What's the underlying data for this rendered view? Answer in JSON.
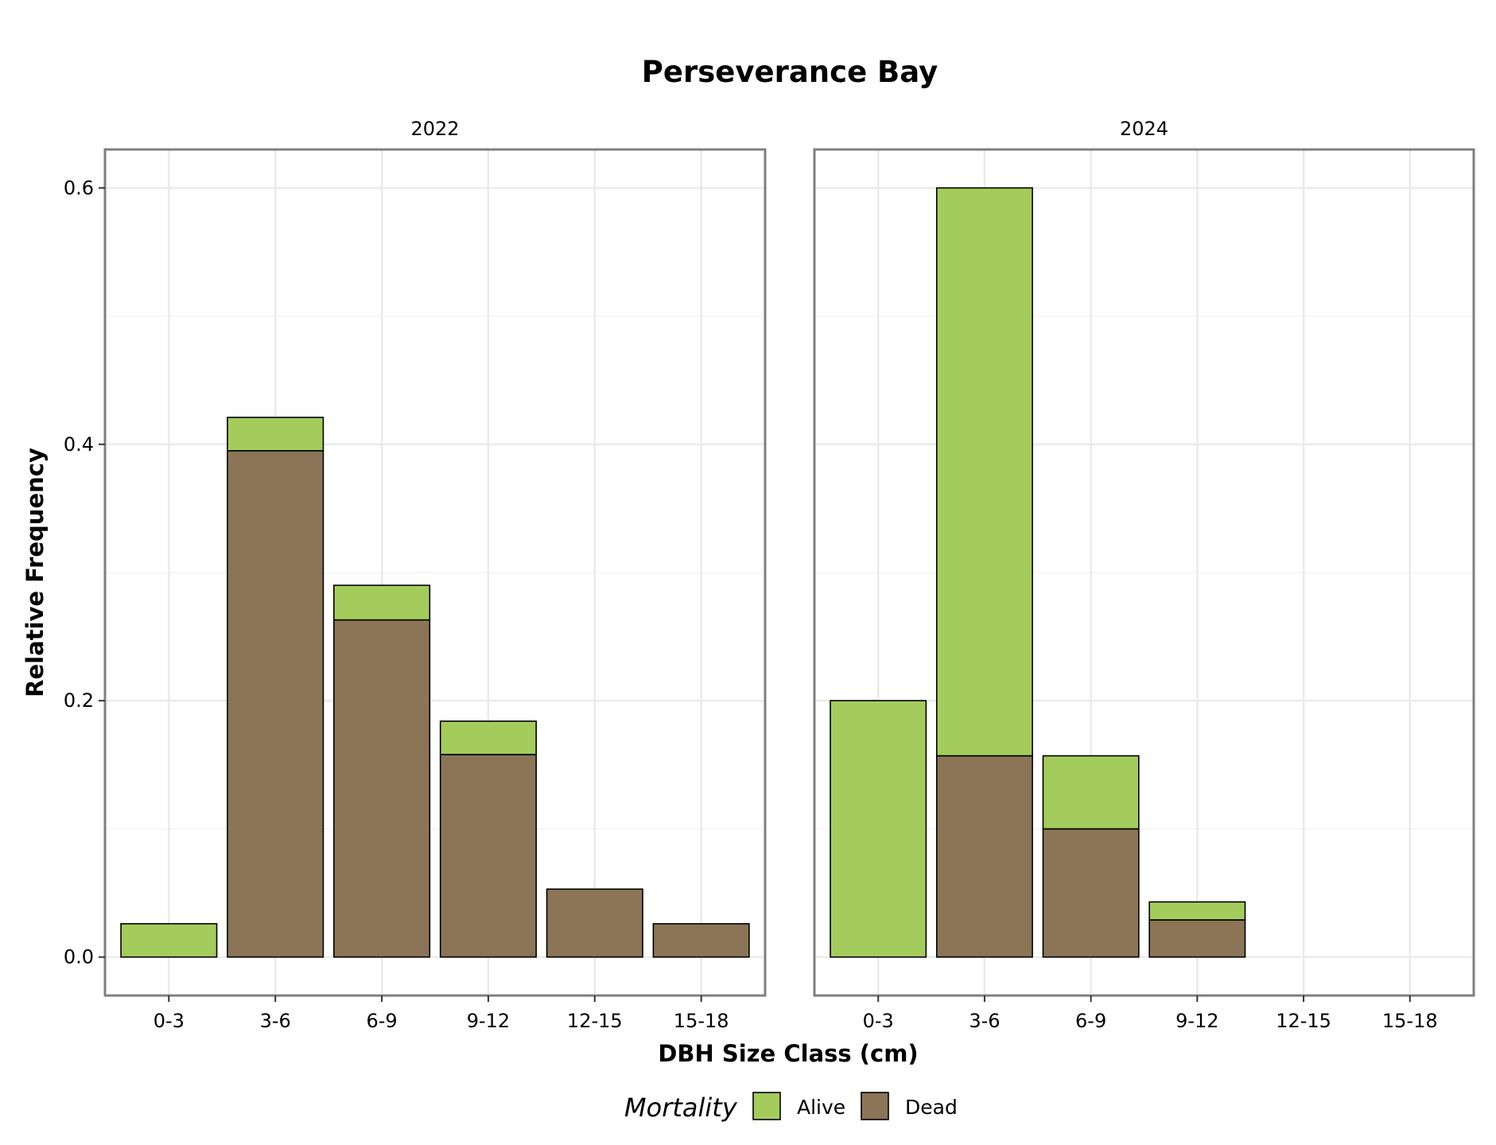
{
  "chart_data": {
    "type": "bar",
    "stacked": true,
    "title": "Perseverance Bay",
    "xlabel": "DBH Size Class (cm)",
    "ylabel": "Relative Frequency",
    "ylim": [
      -0.03,
      0.63
    ],
    "y_ticks": [
      0.0,
      0.2,
      0.4,
      0.6
    ],
    "y_tick_labels": [
      "0.0",
      "0.2",
      "0.4",
      "0.6"
    ],
    "grid": true,
    "legend": {
      "title": "Mortality",
      "position": "bottom",
      "items": [
        {
          "name": "Alive",
          "color": "#a4cc5c"
        },
        {
          "name": "Dead",
          "color": "#8b7556"
        }
      ]
    },
    "categories": [
      "0-3",
      "3-6",
      "6-9",
      "9-12",
      "12-15",
      "15-18"
    ],
    "panels": [
      {
        "label": "2022",
        "series": [
          {
            "name": "Dead",
            "values": [
              0,
              0.395,
              0.263,
              0.158,
              0.053,
              0.026
            ]
          },
          {
            "name": "Alive",
            "values": [
              0.026,
              0.026,
              0.027,
              0.026,
              0,
              0
            ]
          }
        ]
      },
      {
        "label": "2024",
        "series": [
          {
            "name": "Dead",
            "values": [
              0,
              0.157,
              0.1,
              0.029,
              0,
              0
            ]
          },
          {
            "name": "Alive",
            "values": [
              0.2,
              0.443,
              0.057,
              0.014,
              0,
              0
            ]
          }
        ]
      }
    ]
  }
}
